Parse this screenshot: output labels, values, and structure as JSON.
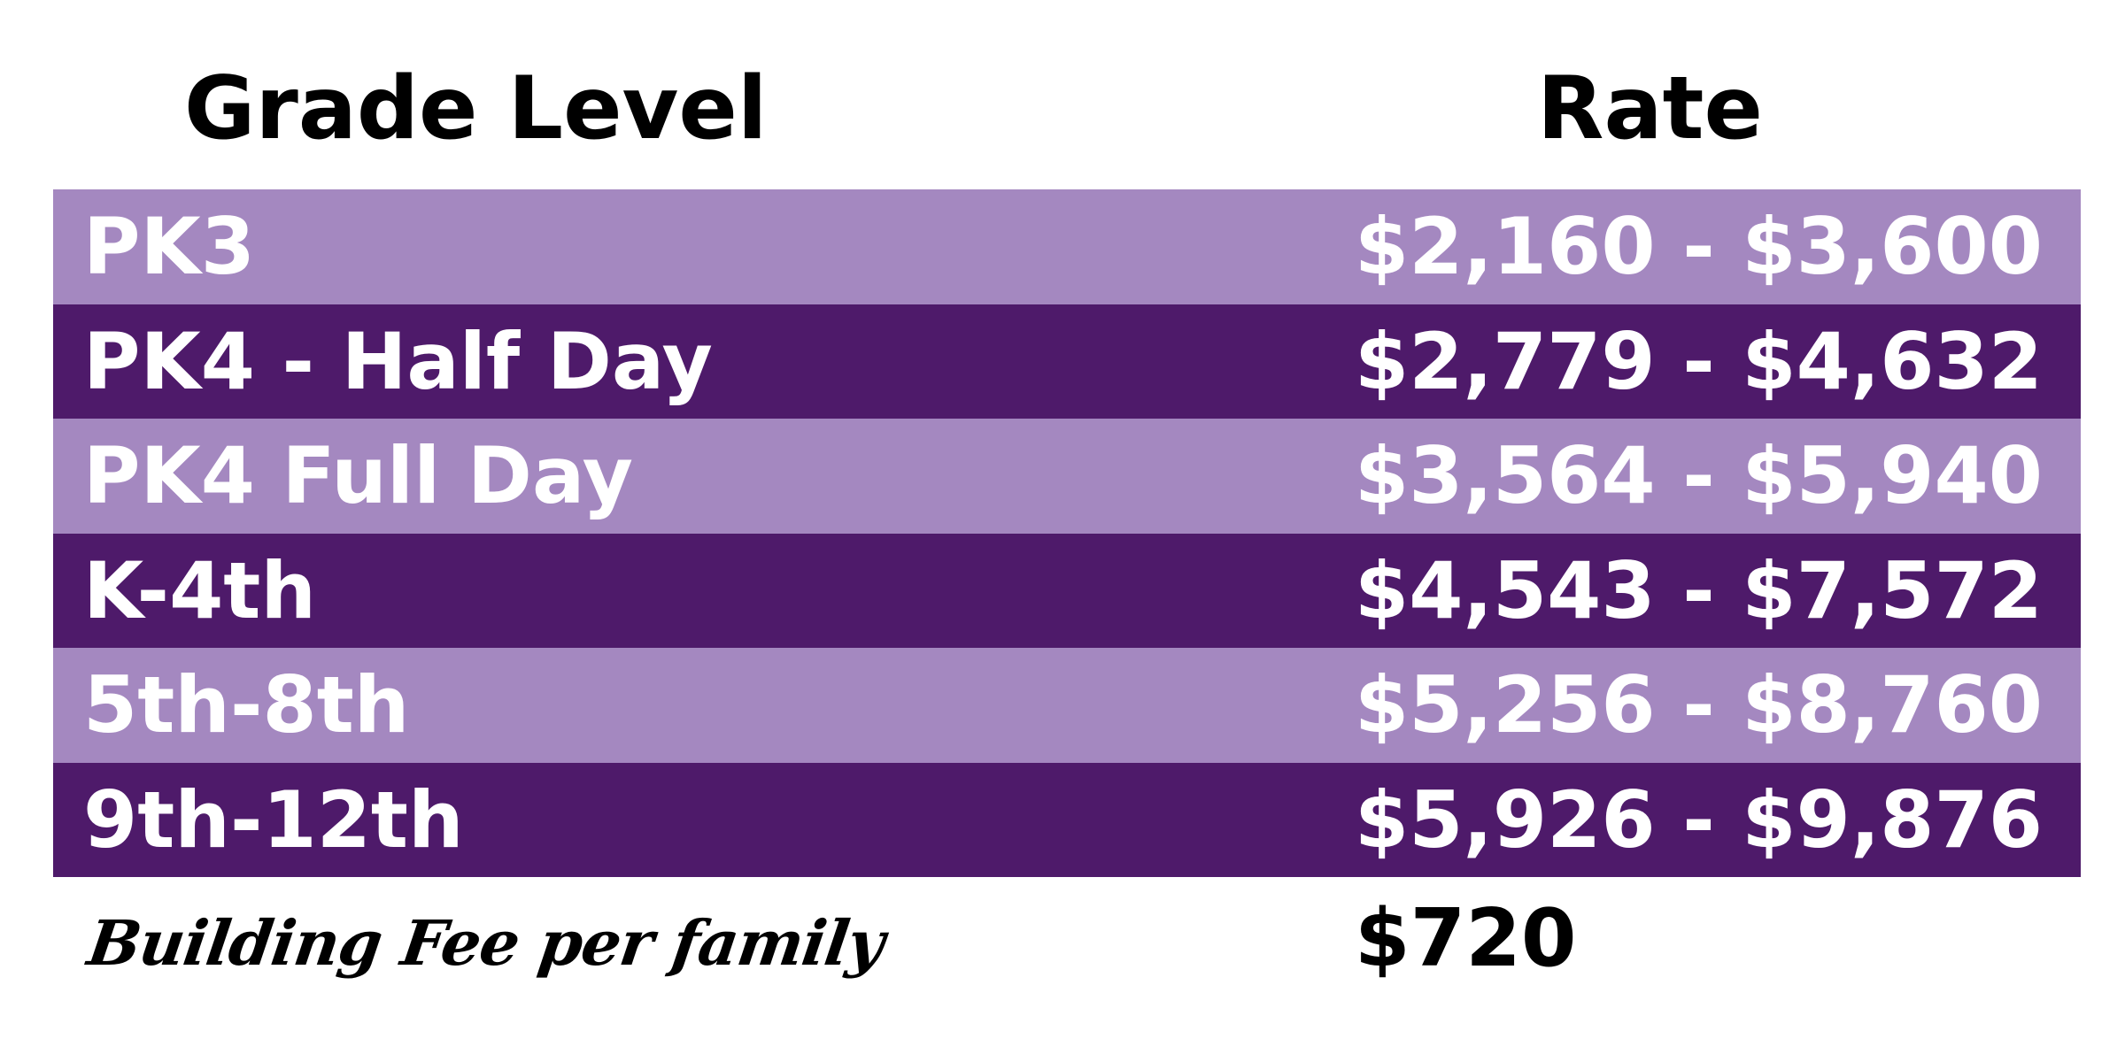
{
  "header": {
    "grade_level": "Grade Level",
    "rate": "Rate"
  },
  "rows": [
    {
      "grade": "PK3",
      "rate": "$2,160 - $3,600"
    },
    {
      "grade": "PK4 - Half Day",
      "rate": "$2,779 - $4,632"
    },
    {
      "grade": "PK4 Full Day",
      "rate": "$3,564 - $5,940"
    },
    {
      "grade": "K-4th",
      "rate": "$4,543 - $7,572"
    },
    {
      "grade": "5th-8th",
      "rate": "$5,256 - $8,760"
    },
    {
      "grade": "9th-12th",
      "rate": "$5,926 - $9,876"
    }
  ],
  "footer": {
    "building_fee_label": "Building Fee per family",
    "building_fee_value": "$720"
  },
  "colors": {
    "light_row": "#a488c0",
    "dark_row": "#4e1a6a",
    "row_text": "#ffffff",
    "header_text": "#000000"
  }
}
